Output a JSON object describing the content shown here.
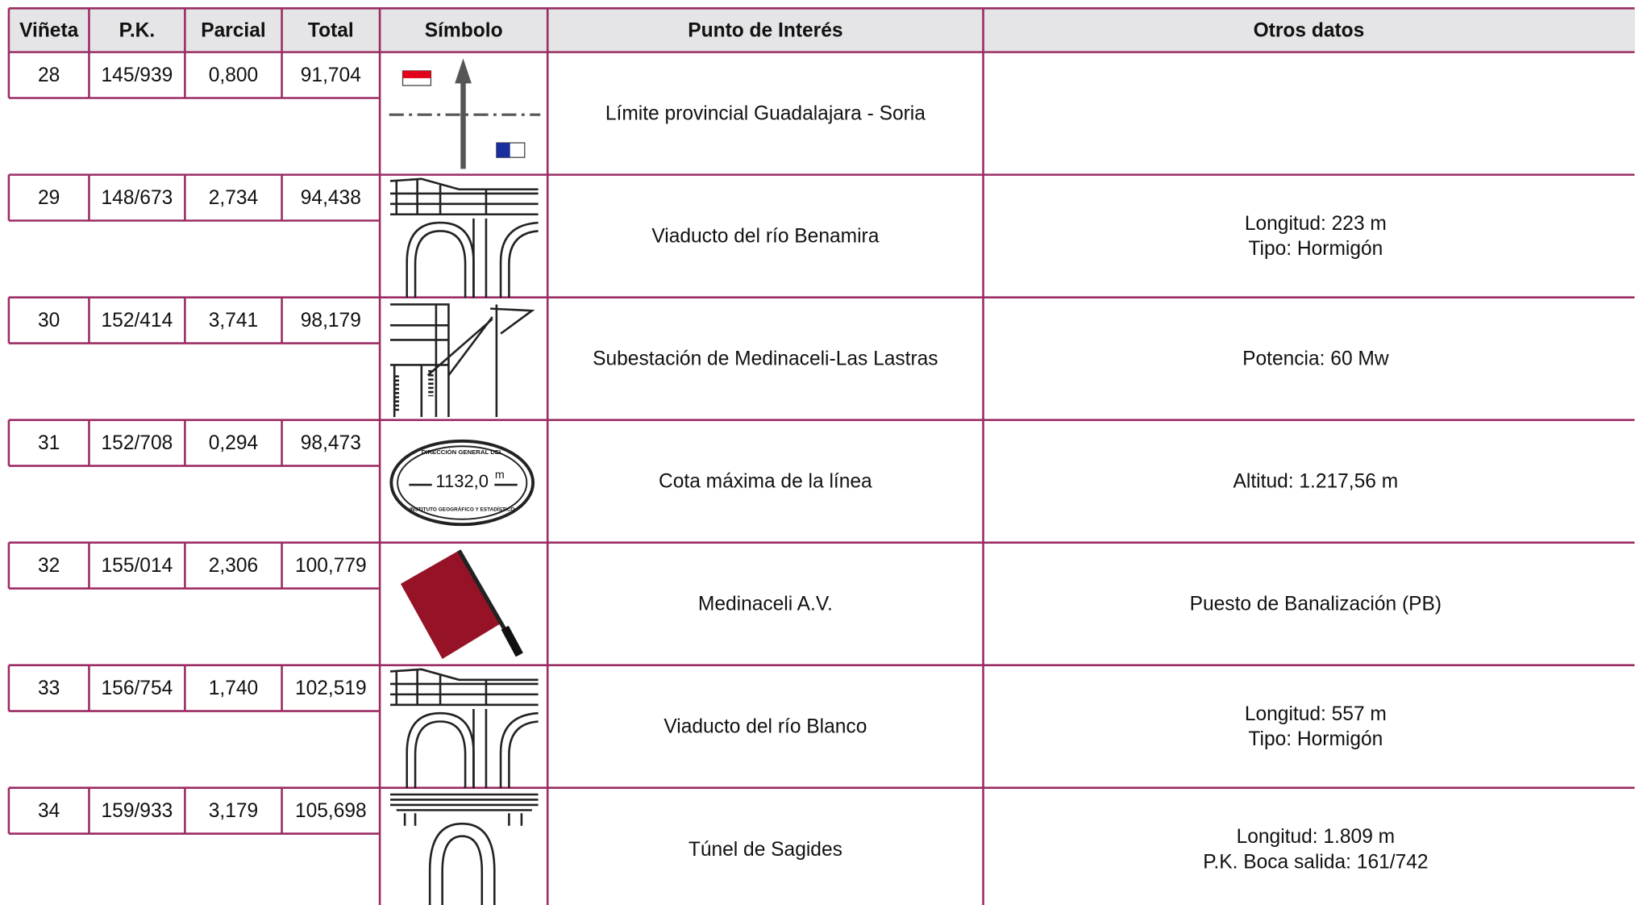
{
  "table": {
    "headers": [
      "Viñeta",
      "P.K.",
      "Parcial",
      "Total",
      "Símbolo",
      "Punto de Interés",
      "Otros datos"
    ],
    "rows": [
      {
        "vineta": "28",
        "pk": "145/939",
        "parcial": "0,800",
        "total": "91,704",
        "punto": "Límite provincial Guadalajara - Soria",
        "otros": []
      },
      {
        "vineta": "29",
        "pk": "148/673",
        "parcial": "2,734",
        "total": "94,438",
        "punto": "Viaducto del río Benamira",
        "otros": [
          "Longitud: 223 m",
          "Tipo: Hormigón"
        ]
      },
      {
        "vineta": "30",
        "pk": "152/414",
        "parcial": "3,741",
        "total": "98,179",
        "punto": "Subestación de Medinaceli-Las Lastras",
        "otros": [
          "Potencia: 60 Mw"
        ]
      },
      {
        "vineta": "31",
        "pk": "152/708",
        "parcial": "0,294",
        "total": "98,473",
        "punto": "Cota máxima de la línea",
        "otros": [
          "Altitud: 1.217,56 m"
        ],
        "symbol_texts": [
          "DIRECCIÓN GENERAL DEL",
          "1132,0",
          "m",
          "INSTITUTO GEOGRÁFICO Y ESTADÍSTICO"
        ]
      },
      {
        "vineta": "32",
        "pk": "155/014",
        "parcial": "2,306",
        "total": "100,779",
        "punto": "Medinaceli A.V.",
        "otros": [
          "Puesto de Banalización (PB)"
        ]
      },
      {
        "vineta": "33",
        "pk": "156/754",
        "parcial": "1,740",
        "total": "102,519",
        "punto": "Viaducto del río Blanco",
        "otros": [
          "Longitud: 557 m",
          "Tipo: Hormigón"
        ]
      },
      {
        "vineta": "34",
        "pk": "159/933",
        "parcial": "3,179",
        "total": "105,698",
        "punto": "Túnel de Sagides",
        "otros": [
          "Longitud: 1.809 m",
          "P.K. Boca salida: 161/742"
        ]
      }
    ]
  }
}
